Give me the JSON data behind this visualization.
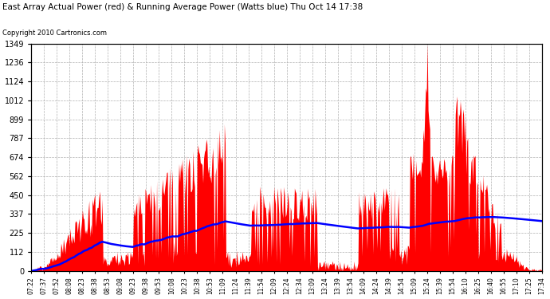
{
  "title": "East Array Actual Power (red) & Running Average Power (Watts blue) Thu Oct 14 17:38",
  "copyright": "Copyright 2010 Cartronics.com",
  "y_max": 1348.8,
  "y_min": 0.0,
  "y_ticks": [
    0.0,
    112.4,
    224.8,
    337.2,
    449.6,
    562.0,
    674.4,
    786.8,
    899.2,
    1011.6,
    1124.0,
    1236.4,
    1348.8
  ],
  "background_color": "#ffffff",
  "grid_color": "#b0b0b0",
  "actual_color": "red",
  "average_color": "blue",
  "x_labels": [
    "07:22",
    "07:37",
    "07:52",
    "08:08",
    "08:23",
    "08:38",
    "08:53",
    "09:08",
    "09:23",
    "09:38",
    "09:53",
    "10:08",
    "10:23",
    "10:38",
    "10:53",
    "11:09",
    "11:24",
    "11:39",
    "11:54",
    "12:09",
    "12:24",
    "12:34",
    "13:09",
    "13:24",
    "13:39",
    "13:54",
    "14:09",
    "14:24",
    "14:39",
    "14:54",
    "15:09",
    "15:24",
    "15:39",
    "15:54",
    "16:10",
    "16:25",
    "16:40",
    "16:55",
    "17:10",
    "17:25",
    "17:34"
  ]
}
